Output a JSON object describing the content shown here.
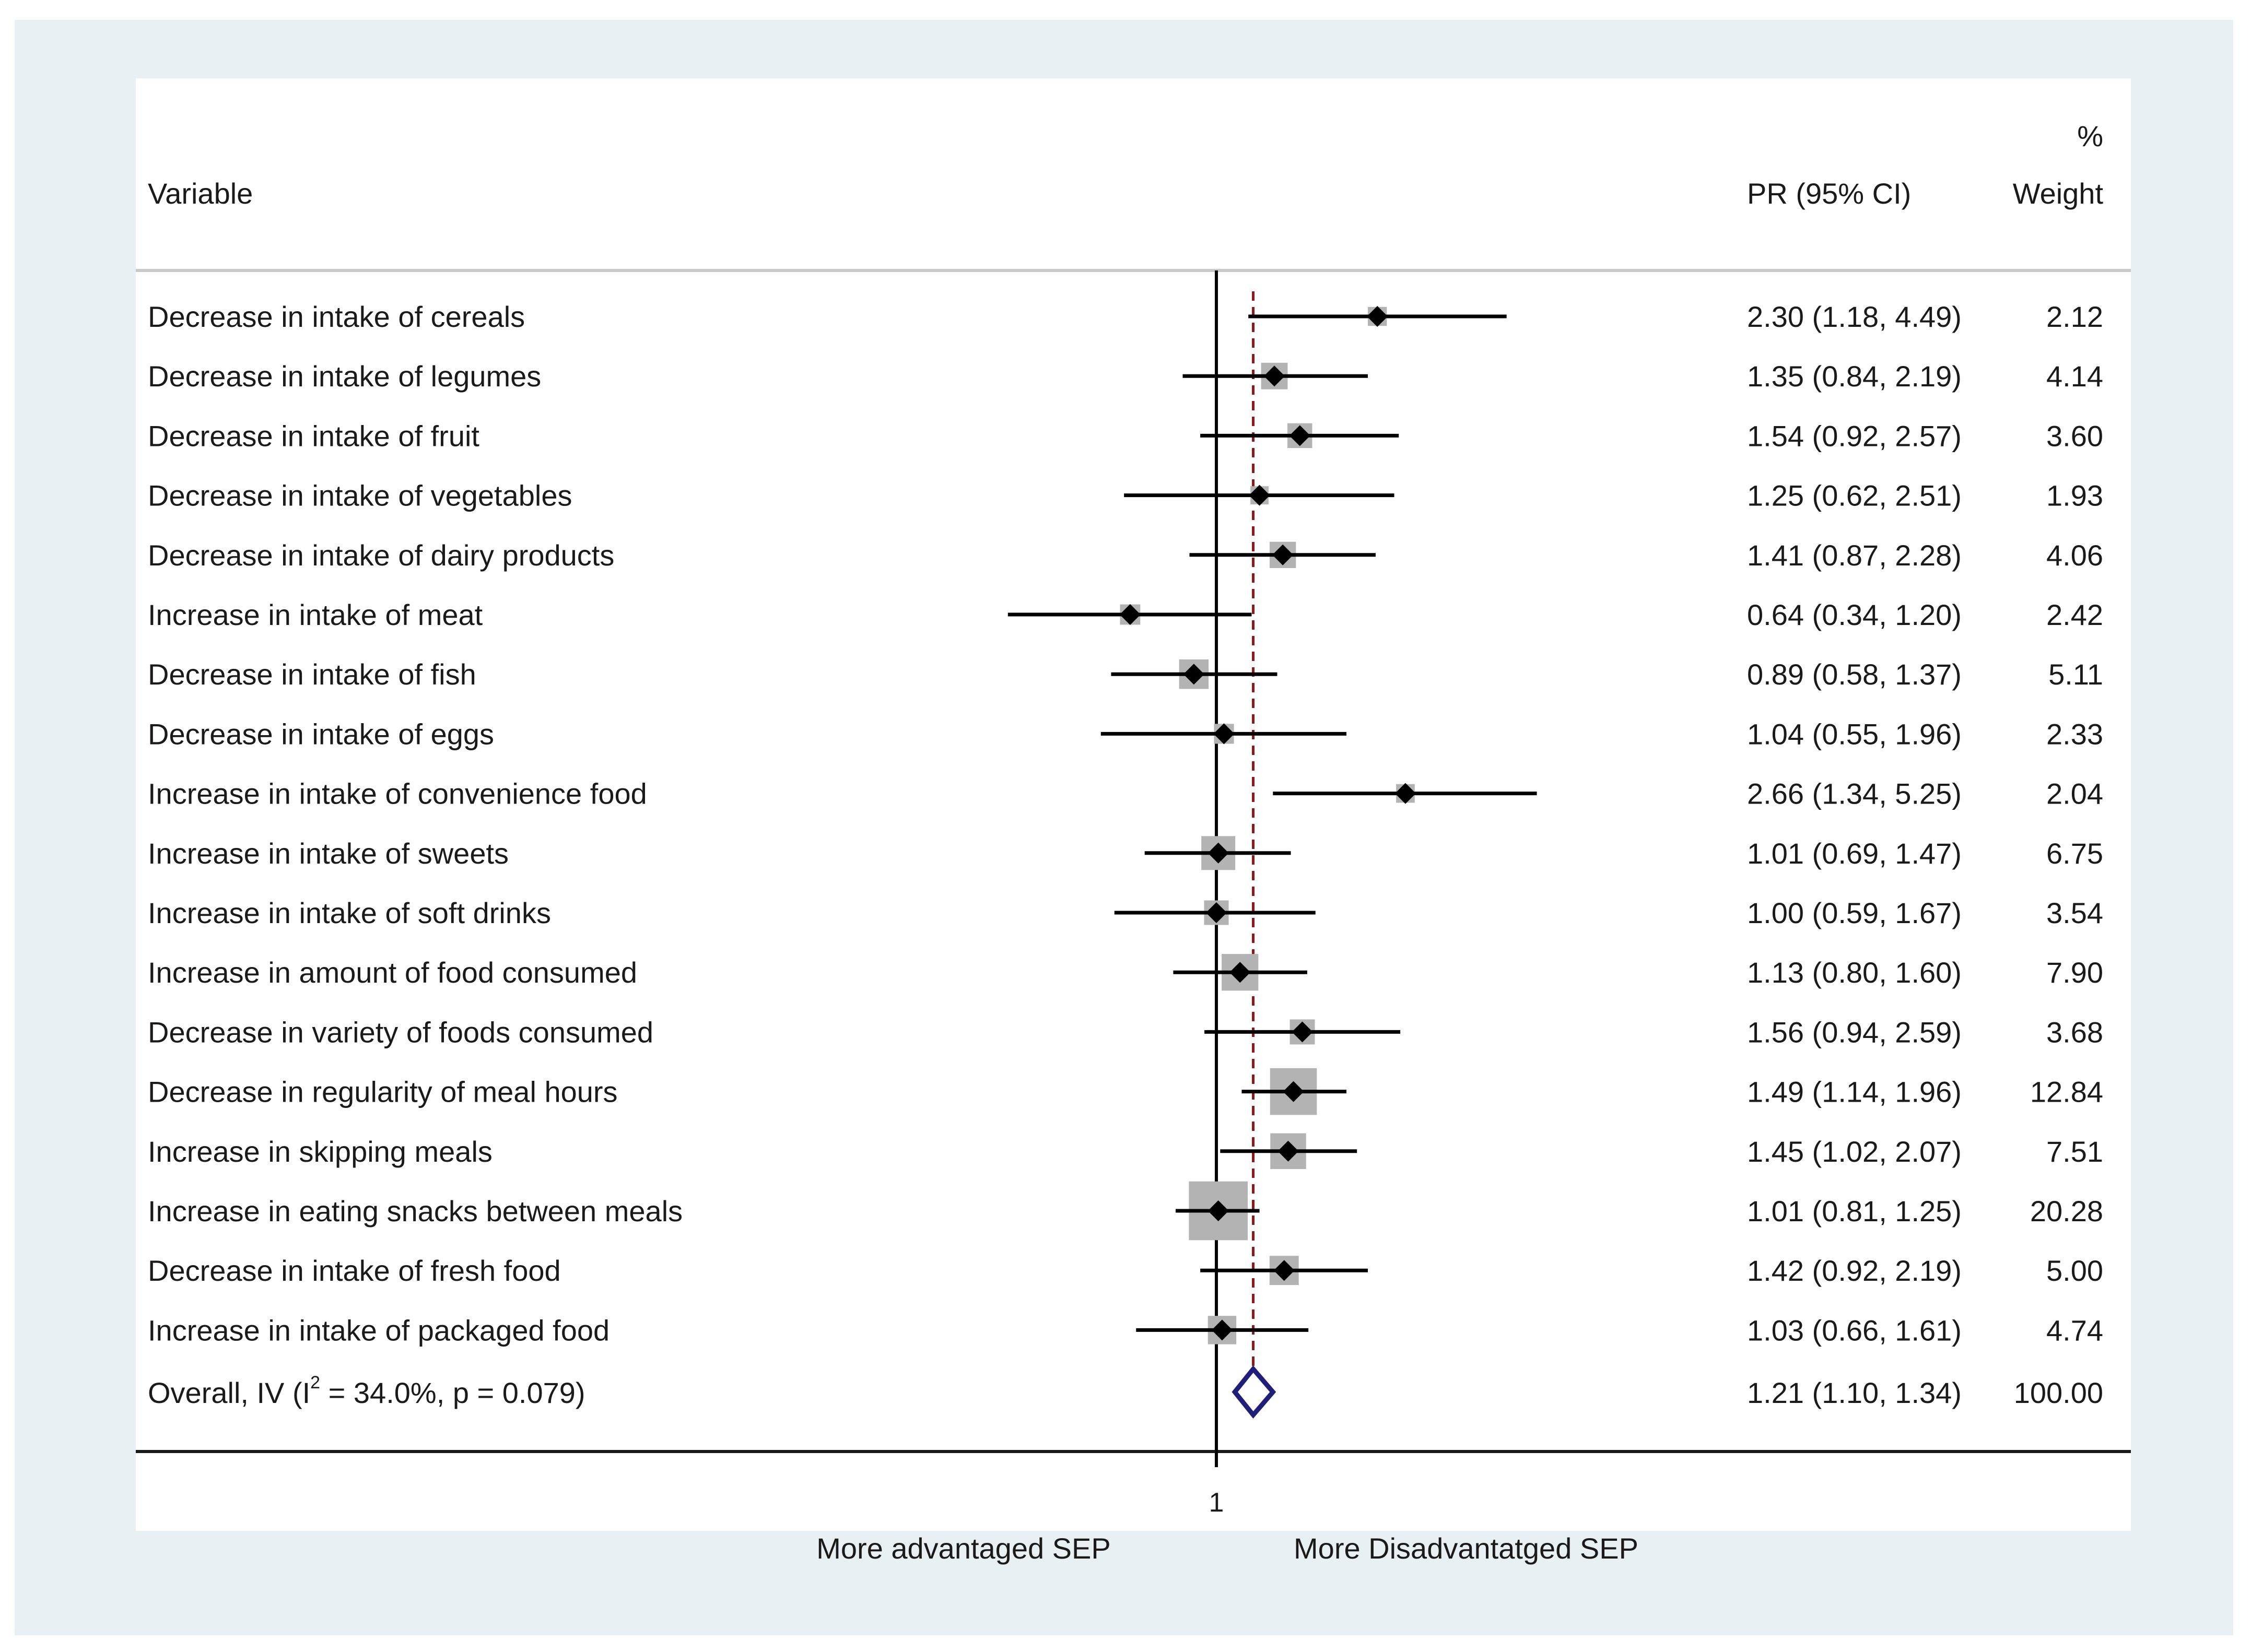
{
  "chart_data": {
    "type": "forest",
    "header": {
      "variable": "Variable",
      "estimate": "PR (95% CI)",
      "weight_top": "%",
      "weight": "Weight"
    },
    "reference_value": 1,
    "overall_estimate_line": 1.21,
    "x_tick_labels": [
      "1"
    ],
    "x_direction_left": "More advantaged SEP",
    "x_direction_right": "More Disadvantatged SEP",
    "rows": [
      {
        "label": "Decrease in intake of cereals",
        "pr": 2.3,
        "lo": 1.18,
        "hi": 4.49,
        "ci_text": "2.30 (1.18, 4.49)",
        "weight": 2.12,
        "weight_text": "2.12"
      },
      {
        "label": "Decrease in intake of legumes",
        "pr": 1.35,
        "lo": 0.84,
        "hi": 2.19,
        "ci_text": "1.35 (0.84, 2.19)",
        "weight": 4.14,
        "weight_text": "4.14"
      },
      {
        "label": "Decrease in intake of fruit",
        "pr": 1.54,
        "lo": 0.92,
        "hi": 2.57,
        "ci_text": "1.54 (0.92, 2.57)",
        "weight": 3.6,
        "weight_text": "3.60"
      },
      {
        "label": "Decrease in intake of vegetables",
        "pr": 1.25,
        "lo": 0.62,
        "hi": 2.51,
        "ci_text": "1.25 (0.62, 2.51)",
        "weight": 1.93,
        "weight_text": "1.93"
      },
      {
        "label": "Decrease in intake of dairy products",
        "pr": 1.41,
        "lo": 0.87,
        "hi": 2.28,
        "ci_text": "1.41 (0.87, 2.28)",
        "weight": 4.06,
        "weight_text": "4.06"
      },
      {
        "label": "Increase in intake of meat",
        "pr": 0.64,
        "lo": 0.34,
        "hi": 1.2,
        "ci_text": "0.64 (0.34, 1.20)",
        "weight": 2.42,
        "weight_text": "2.42"
      },
      {
        "label": "Decrease in intake of fish",
        "pr": 0.89,
        "lo": 0.58,
        "hi": 1.37,
        "ci_text": "0.89 (0.58, 1.37)",
        "weight": 5.11,
        "weight_text": "5.11"
      },
      {
        "label": "Decrease in intake of eggs",
        "pr": 1.04,
        "lo": 0.55,
        "hi": 1.96,
        "ci_text": "1.04 (0.55, 1.96)",
        "weight": 2.33,
        "weight_text": "2.33"
      },
      {
        "label": "Increase in intake of convenience food",
        "pr": 2.66,
        "lo": 1.34,
        "hi": 5.25,
        "ci_text": "2.66 (1.34, 5.25)",
        "weight": 2.04,
        "weight_text": "2.04"
      },
      {
        "label": "Increase in intake of sweets",
        "pr": 1.01,
        "lo": 0.69,
        "hi": 1.47,
        "ci_text": "1.01 (0.69, 1.47)",
        "weight": 6.75,
        "weight_text": "6.75"
      },
      {
        "label": "Increase in intake of soft drinks",
        "pr": 1.0,
        "lo": 0.59,
        "hi": 1.67,
        "ci_text": "1.00 (0.59, 1.67)",
        "weight": 3.54,
        "weight_text": "3.54"
      },
      {
        "label": "Increase in amount of food consumed",
        "pr": 1.13,
        "lo": 0.8,
        "hi": 1.6,
        "ci_text": "1.13 (0.80, 1.60)",
        "weight": 7.9,
        "weight_text": "7.90"
      },
      {
        "label": "Decrease in variety of foods consumed",
        "pr": 1.56,
        "lo": 0.94,
        "hi": 2.59,
        "ci_text": "1.56 (0.94, 2.59)",
        "weight": 3.68,
        "weight_text": "3.68"
      },
      {
        "label": "Decrease in regularity of meal hours",
        "pr": 1.49,
        "lo": 1.14,
        "hi": 1.96,
        "ci_text": "1.49 (1.14, 1.96)",
        "weight": 12.84,
        "weight_text": "12.84"
      },
      {
        "label": "Increase in skipping meals",
        "pr": 1.45,
        "lo": 1.02,
        "hi": 2.07,
        "ci_text": "1.45 (1.02, 2.07)",
        "weight": 7.51,
        "weight_text": "7.51"
      },
      {
        "label": "Increase in eating snacks between meals",
        "pr": 1.01,
        "lo": 0.81,
        "hi": 1.25,
        "ci_text": "1.01 (0.81, 1.25)",
        "weight": 20.28,
        "weight_text": "20.28"
      },
      {
        "label": "Decrease in intake of fresh food",
        "pr": 1.42,
        "lo": 0.92,
        "hi": 2.19,
        "ci_text": "1.42 (0.92, 2.19)",
        "weight": 5.0,
        "weight_text": "5.00"
      },
      {
        "label": "Increase in intake of packaged food",
        "pr": 1.03,
        "lo": 0.66,
        "hi": 1.61,
        "ci_text": "1.03 (0.66, 1.61)",
        "weight": 4.74,
        "weight_text": "4.74"
      }
    ],
    "overall": {
      "label_prefix": "Overall, IV (I",
      "label_sup": "2",
      "label_suffix": " = 34.0%, p = 0.079)",
      "pr": 1.21,
      "lo": 1.1,
      "hi": 1.34,
      "ci_text": "1.21 (1.10, 1.34)",
      "weight_text": "100.00"
    },
    "colors": {
      "frame": "#e8f0f3",
      "panel": "#ffffff",
      "marker": "#000000",
      "weight_box": "#b3b3b3",
      "overall_diamond": "#1f1f7a",
      "overall_line": "#8b1a1a"
    }
  }
}
